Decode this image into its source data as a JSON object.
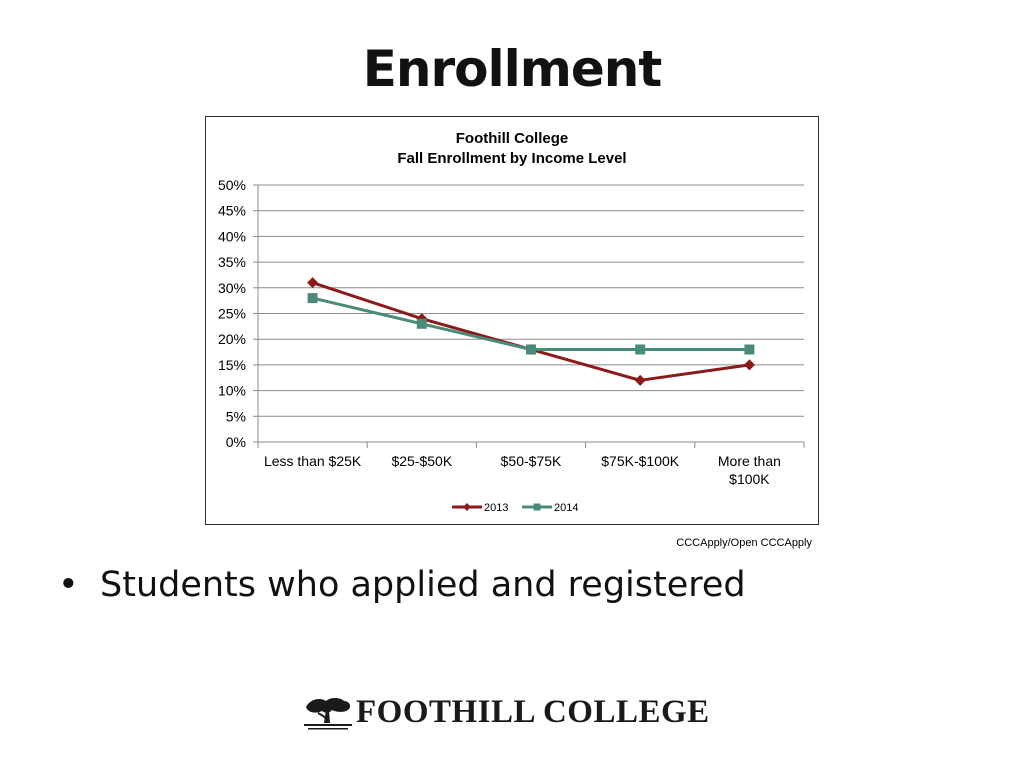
{
  "slide": {
    "title": "Enrollment",
    "bullet_marker": "•",
    "bullet_text": "Students who applied and registered",
    "source": "CCCApply/Open CCCApply",
    "logo_text": "FOOTHILL COLLEGE"
  },
  "chart_data": {
    "type": "line",
    "title_lines": [
      "Foothill College",
      "Fall Enrollment by Income Level"
    ],
    "categories": [
      [
        "Less than $25K"
      ],
      [
        "$25-$50K"
      ],
      [
        "$50-$75K"
      ],
      [
        "$75K-$100K"
      ],
      [
        "More than",
        "$100K"
      ]
    ],
    "series": [
      {
        "name": "2013",
        "values": [
          31,
          24,
          18,
          12,
          15
        ],
        "color": "#8b1a1a",
        "marker": "diamond"
      },
      {
        "name": "2014",
        "values": [
          28,
          23,
          18,
          18,
          18
        ],
        "color": "#4a8a7a",
        "marker": "square"
      }
    ],
    "ylim": [
      0,
      50
    ],
    "y_ticks": [
      0,
      5,
      10,
      15,
      20,
      25,
      30,
      35,
      40,
      45,
      50
    ],
    "y_tick_format": "percent",
    "grid": true,
    "legend_position": "bottom"
  }
}
